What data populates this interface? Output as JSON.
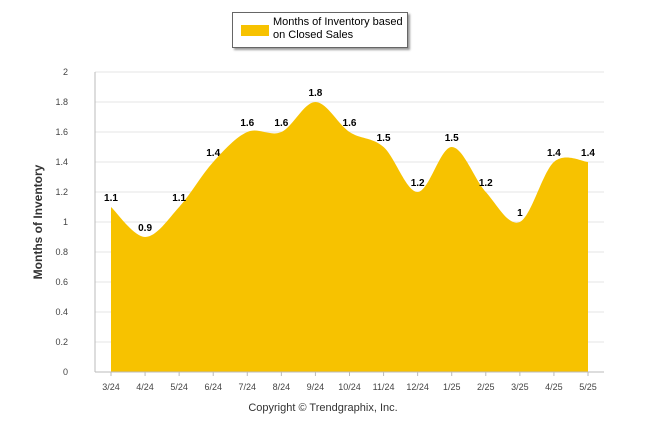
{
  "colors": {
    "fill": "#F7C200",
    "grid": "#e4e4e4",
    "axis": "#bbbbbb"
  },
  "legend": {
    "label": "Months of Inventory based on Closed Sales"
  },
  "footer": {
    "text": "Copyright © Trendgraphix, Inc."
  },
  "chart_data": {
    "type": "area",
    "title": "",
    "xlabel": "",
    "ylabel": "Months of Inventory",
    "ylim": [
      0,
      2
    ],
    "yticks": [
      "0",
      "0.2",
      "0.4",
      "0.6",
      "0.8",
      "1",
      "1.2",
      "1.4",
      "1.6",
      "1.8",
      "2"
    ],
    "grid": true,
    "legend_position": "top-center",
    "categories": [
      "3/24",
      "4/24",
      "5/24",
      "6/24",
      "7/24",
      "8/24",
      "9/24",
      "10/24",
      "11/24",
      "12/24",
      "1/25",
      "2/25",
      "3/25",
      "4/25",
      "5/25"
    ],
    "series": [
      {
        "name": "Months of Inventory based on Closed Sales",
        "values": [
          1.1,
          0.9,
          1.1,
          1.4,
          1.6,
          1.6,
          1.8,
          1.6,
          1.5,
          1.2,
          1.5,
          1.2,
          1,
          1.4,
          1.4
        ]
      }
    ]
  }
}
